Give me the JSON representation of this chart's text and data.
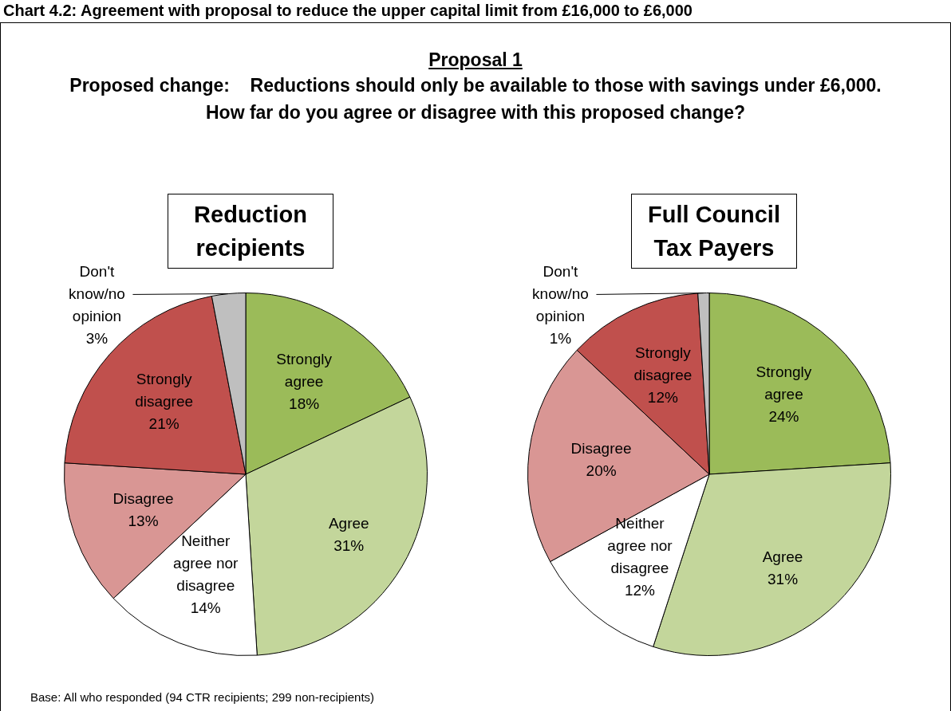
{
  "chart_data": [
    {
      "type": "pie",
      "title": "Reduction recipients",
      "annotations": [
        "Chart 4.2: Agreement with proposal to reduce the upper capital limit from £16,000 to £6,000",
        "Proposal 1",
        "Proposed change:    Reductions should only be available to those with savings under £6,000.",
        "How far do you agree or disagree with this proposed change?",
        "Base: All who responded (94 CTR recipients; 299 non-recipients)"
      ],
      "categories": [
        "Strongly agree",
        "Agree",
        "Neither agree nor disagree",
        "Disagree",
        "Strongly disagree",
        "Don't know/no opinion"
      ],
      "values": [
        18,
        31,
        14,
        13,
        21,
        3
      ],
      "value_labels": [
        "18%",
        "31%",
        "14%",
        "13%",
        "21%",
        "3%"
      ],
      "colors": [
        "#9bbb59",
        "#c3d69b",
        "#ffffff",
        "#d99694",
        "#c0504d",
        "#bfbfbf"
      ]
    },
    {
      "type": "pie",
      "title": "Full Council Tax Payers",
      "categories": [
        "Strongly agree",
        "Agree",
        "Neither agree nor disagree",
        "Disagree",
        "Strongly disagree",
        "Don't know/no opinion"
      ],
      "values": [
        24,
        31,
        12,
        20,
        12,
        1
      ],
      "value_labels": [
        "24%",
        "31%",
        "12%",
        "20%",
        "12%",
        "1%"
      ],
      "colors": [
        "#9bbb59",
        "#c3d69b",
        "#ffffff",
        "#d99694",
        "#c0504d",
        "#bfbfbf"
      ]
    }
  ]
}
